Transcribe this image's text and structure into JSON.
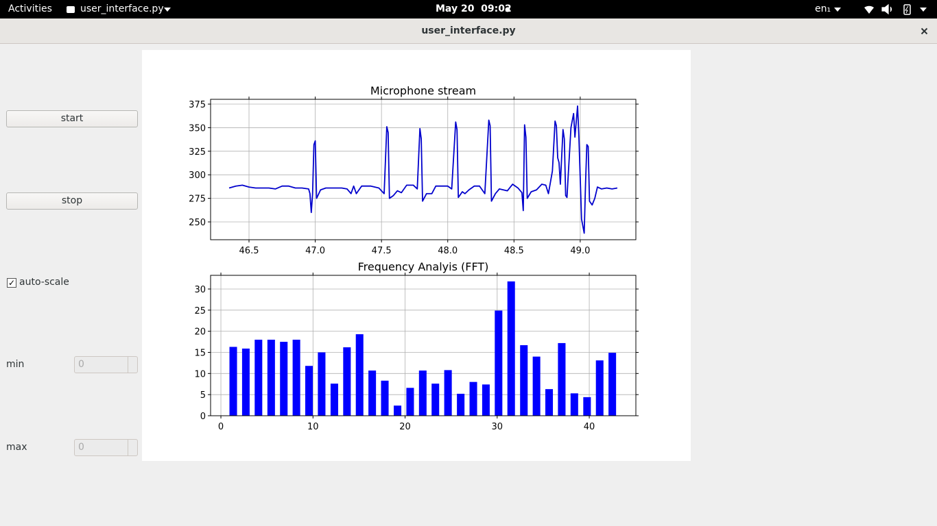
{
  "topbar": {
    "activities": "Activities",
    "app": "user_interface.py",
    "clock": "May 20  09:02",
    "keyboard": "en₁"
  },
  "window": {
    "title": "user_interface.py"
  },
  "controls": {
    "start": "start",
    "stop": "stop",
    "autoscale": {
      "label": "auto-scale",
      "checked": true
    },
    "min": {
      "label": "min",
      "value": 0
    },
    "max": {
      "label": "max",
      "value": 0
    }
  },
  "chart_data": [
    {
      "type": "line",
      "title": "Microphone stream",
      "color": "#0000cc",
      "grid": true,
      "x": [
        46.35,
        46.4,
        46.45,
        46.5,
        46.55,
        46.6,
        46.65,
        46.7,
        46.75,
        46.8,
        46.85,
        46.9,
        46.95,
        46.96,
        46.97,
        46.98,
        46.99,
        47.0,
        47.01,
        47.04,
        47.08,
        47.12,
        47.16,
        47.2,
        47.24,
        47.27,
        47.29,
        47.31,
        47.35,
        47.42,
        47.48,
        47.52,
        47.54,
        47.55,
        47.56,
        47.59,
        47.62,
        47.65,
        47.69,
        47.74,
        47.77,
        47.79,
        47.8,
        47.81,
        47.84,
        47.88,
        47.91,
        47.96,
        48.0,
        48.03,
        48.06,
        48.07,
        48.08,
        48.11,
        48.13,
        48.16,
        48.2,
        48.24,
        48.28,
        48.31,
        48.32,
        48.33,
        48.36,
        48.39,
        48.42,
        48.45,
        48.49,
        48.53,
        48.56,
        48.57,
        48.58,
        48.59,
        48.6,
        48.63,
        48.67,
        48.71,
        48.74,
        48.76,
        48.79,
        48.81,
        48.82,
        48.83,
        48.84,
        48.85,
        48.87,
        48.88,
        48.89,
        48.9,
        48.93,
        48.95,
        48.96,
        48.98,
        48.99,
        49.01,
        49.03,
        49.04,
        49.05,
        49.06,
        49.07,
        49.09,
        49.11,
        49.13,
        49.16,
        49.2,
        49.24,
        49.28
      ],
      "values": [
        286,
        288,
        289,
        287,
        286,
        286,
        286,
        285,
        288,
        288,
        286,
        286,
        285,
        280,
        260,
        280,
        332,
        336,
        275,
        284,
        286,
        286,
        286,
        286,
        285,
        280,
        288,
        280,
        288,
        288,
        286,
        280,
        351,
        345,
        275,
        278,
        283,
        281,
        289,
        289,
        285,
        349,
        338,
        272,
        280,
        280,
        288,
        288,
        288,
        285,
        356,
        348,
        276,
        282,
        280,
        284,
        288,
        288,
        280,
        358,
        352,
        272,
        280,
        285,
        284,
        283,
        290,
        286,
        281,
        262,
        353,
        340,
        275,
        282,
        284,
        290,
        289,
        280,
        304,
        357,
        352,
        318,
        313,
        290,
        348,
        338,
        278,
        276,
        350,
        365,
        340,
        373,
        340,
        253,
        238,
        290,
        332,
        330,
        272,
        268,
        275,
        287,
        285,
        286,
        285,
        286
      ],
      "xlim": [
        46.21,
        49.42
      ],
      "xticks": [
        46.5,
        {
          "value": 47,
          "label": "47.0"
        },
        47.5,
        {
          "value": 48,
          "label": "48.0"
        },
        48.5,
        {
          "value": 49,
          "label": "49.0"
        }
      ],
      "ylim": [
        231.1,
        380.1
      ],
      "yticks": [
        250,
        275,
        300,
        325,
        350,
        375
      ]
    },
    {
      "type": "bar",
      "title": "Frequency Analyis (FFT)",
      "color": "#0000ff",
      "grid": true,
      "x": [
        1.34,
        2.71,
        4.08,
        5.46,
        6.83,
        8.2,
        9.57,
        10.94,
        12.32,
        13.69,
        15.06,
        16.43,
        17.8,
        19.18,
        20.55,
        21.92,
        23.29,
        24.66,
        26.04,
        27.41,
        28.78,
        30.15,
        31.52,
        32.9,
        34.27,
        35.64,
        37.01,
        38.38,
        39.76,
        41.13,
        42.5
      ],
      "values": [
        16.3,
        15.9,
        18.0,
        18.0,
        17.5,
        18.0,
        11.8,
        15.0,
        7.6,
        16.2,
        19.3,
        10.7,
        8.3,
        2.4,
        6.6,
        10.7,
        7.6,
        10.8,
        5.2,
        8.0,
        7.4,
        24.9,
        31.8,
        16.7,
        14.0,
        6.3,
        17.2,
        5.3,
        4.4,
        13.1,
        14.9
      ],
      "xlim": [
        -1.12,
        45.06
      ],
      "xticks": [
        0,
        10,
        20,
        30,
        40
      ],
      "ylim": [
        0,
        33.24
      ],
      "yticks": [
        0,
        5,
        10,
        15,
        20,
        25,
        30
      ]
    }
  ]
}
